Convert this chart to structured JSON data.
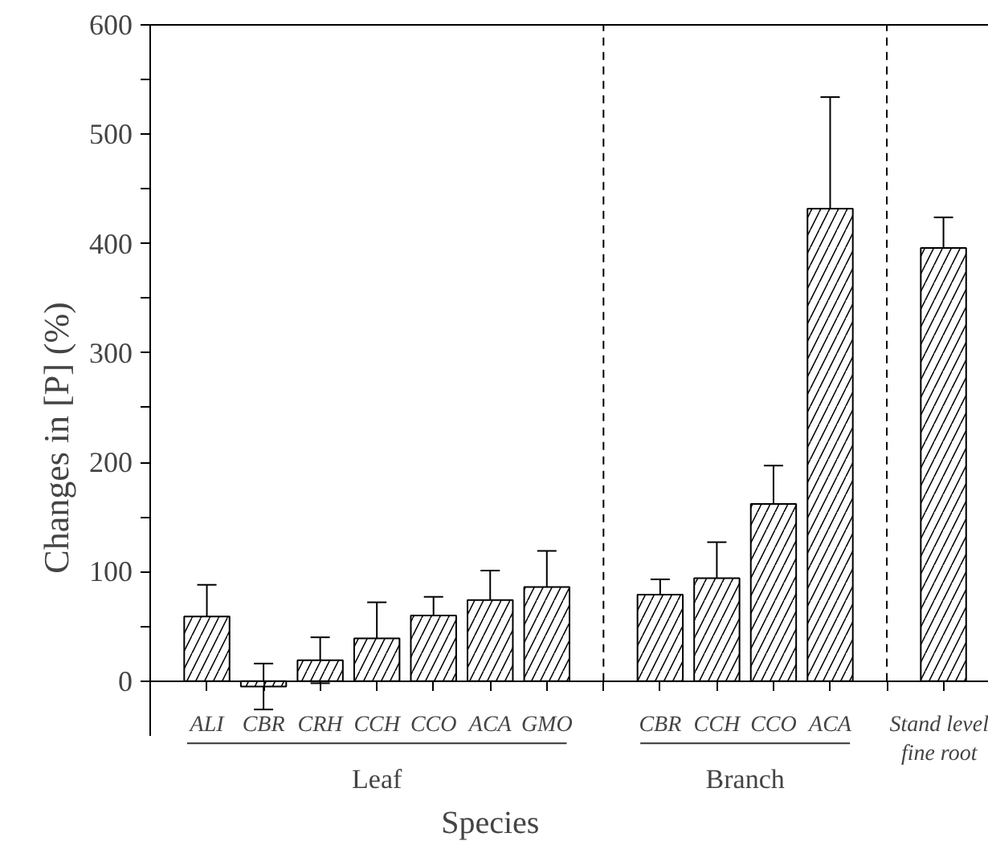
{
  "chart_data": {
    "type": "bar",
    "xlabel": "Species",
    "ylabel": "Changes in [P]  (%)",
    "categories": [
      "ALI",
      "CBR",
      "CRH",
      "CCH",
      "CCO",
      "ACA",
      "GMO",
      null,
      "CBR",
      "CCH",
      "CCO",
      "ACA",
      null,
      "Stand level\nfine root"
    ],
    "values": [
      59,
      -5,
      19,
      39,
      60,
      74,
      86,
      null,
      79,
      94,
      162,
      432,
      null,
      396
    ],
    "errors": [
      29,
      21,
      21,
      33,
      17,
      27,
      33,
      null,
      14,
      33,
      35,
      102,
      null,
      28
    ],
    "color": "#ffffff",
    "ylim": [
      -50,
      600
    ],
    "yticks": [
      0,
      {
        "value": 50,
        "label": null
      },
      100,
      {
        "value": 150,
        "label": null
      },
      200,
      {
        "value": 250,
        "label": null
      },
      300,
      {
        "value": 350,
        "label": null
      },
      400,
      {
        "value": 450,
        "label": null
      },
      500,
      {
        "value": 550,
        "label": null
      },
      600
    ],
    "annotations": [
      "Leaf",
      "Branch"
    ]
  }
}
